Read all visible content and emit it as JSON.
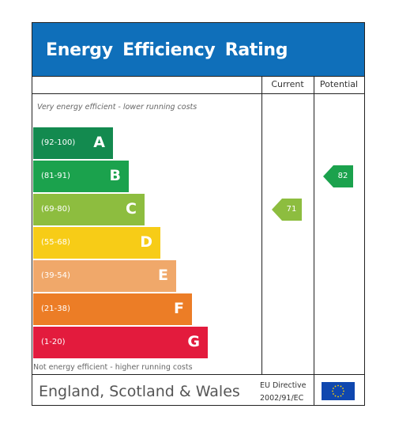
{
  "title": "Energy Efficiency Rating",
  "columns": {
    "current": "Current",
    "potential": "Potential"
  },
  "captions": {
    "top": "Very energy efficient - lower running costs",
    "bottom": "Not energy efficient - higher running costs"
  },
  "footer": {
    "country": "England, Scotland & Wales",
    "directive_line1": "EU Directive",
    "directive_line2": "2002/91/EC",
    "flag": "eu-flag-icon"
  },
  "chart_data": {
    "type": "bar",
    "title": "Energy Efficiency Rating",
    "categories": [
      "A",
      "B",
      "C",
      "D",
      "E",
      "F",
      "G"
    ],
    "bands": [
      {
        "letter": "A",
        "range": "(92-100)",
        "color": "#138a4f"
      },
      {
        "letter": "B",
        "range": "(81-91)",
        "color": "#1ba24d"
      },
      {
        "letter": "C",
        "range": "(69-80)",
        "color": "#8dbd3f"
      },
      {
        "letter": "D",
        "range": "(55-68)",
        "color": "#f7cc17"
      },
      {
        "letter": "E",
        "range": "(39-54)",
        "color": "#f0a86a"
      },
      {
        "letter": "F",
        "range": "(21-38)",
        "color": "#ec7d26"
      },
      {
        "letter": "G",
        "range": "(1-20)",
        "color": "#e31b3d"
      }
    ],
    "current": {
      "value": 71,
      "band": "C",
      "color": "#8dbd3f"
    },
    "potential": {
      "value": 82,
      "band": "B",
      "color": "#1ba24d"
    }
  }
}
